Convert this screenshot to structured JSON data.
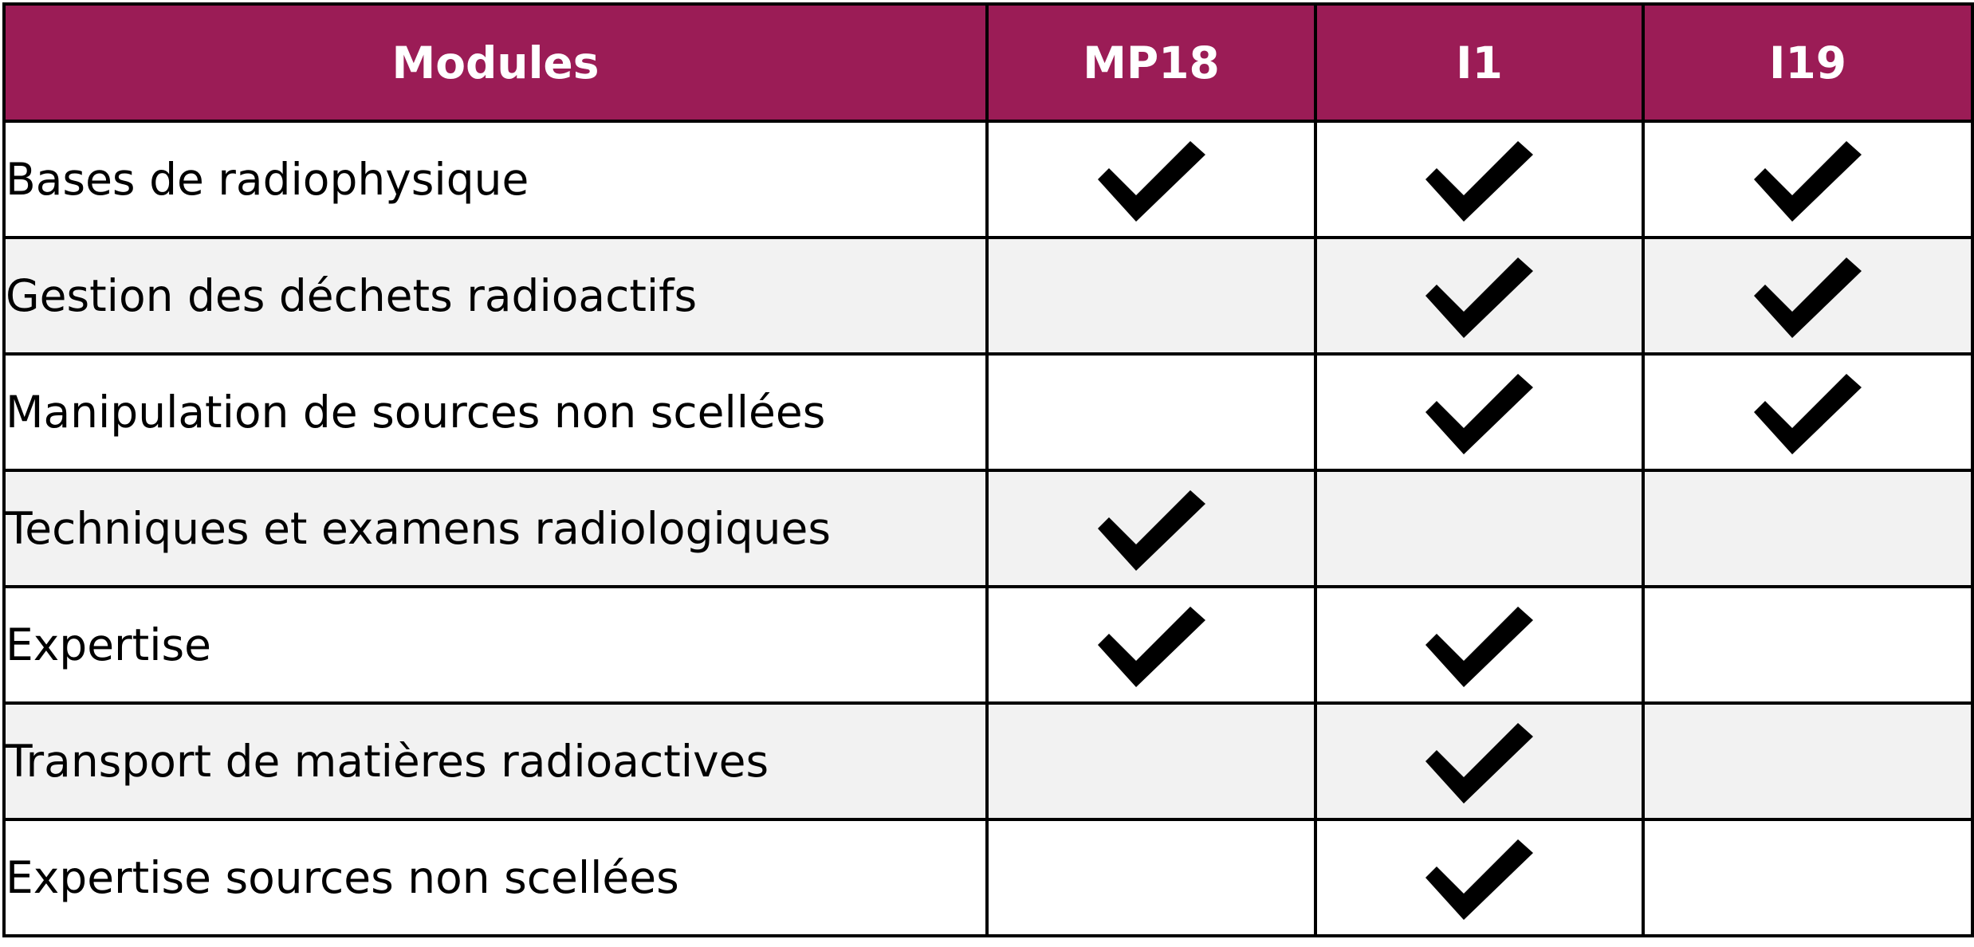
{
  "colors": {
    "header_bg": "#9B1C56",
    "header_text": "#ffffff",
    "row_odd_bg": "#ffffff",
    "row_even_bg": "#F2F2F2",
    "border": "#000000",
    "check": "#000000"
  },
  "table": {
    "headers": [
      "Modules",
      "MP18",
      "I1",
      "I19"
    ],
    "rows": [
      {
        "label": "Bases de radiophysique",
        "marks": [
          true,
          true,
          true
        ]
      },
      {
        "label": "Gestion des déchets radioactifs",
        "marks": [
          false,
          true,
          true
        ]
      },
      {
        "label": "Manipulation de sources non scellées",
        "marks": [
          false,
          true,
          true
        ]
      },
      {
        "label": "Techniques et examens radiologiques",
        "marks": [
          true,
          false,
          false
        ]
      },
      {
        "label": "Expertise",
        "marks": [
          true,
          true,
          false
        ]
      },
      {
        "label": "Transport de matières radioactives",
        "marks": [
          false,
          true,
          false
        ]
      },
      {
        "label": "Expertise sources non scellées",
        "marks": [
          false,
          true,
          false
        ]
      }
    ],
    "check_icon": "check-mark-icon"
  }
}
